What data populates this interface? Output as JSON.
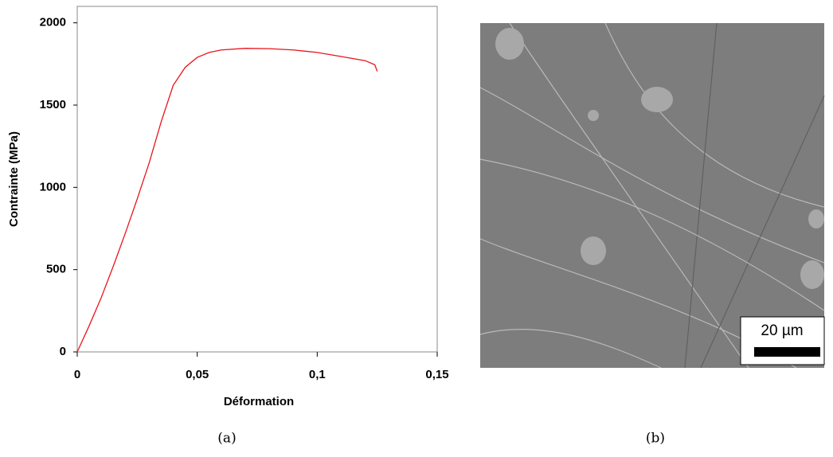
{
  "chart_data": {
    "type": "line",
    "x_label": "Déformation",
    "y_label": "Contrainte (MPa)",
    "x": [
      0,
      0.005,
      0.01,
      0.015,
      0.02,
      0.025,
      0.03,
      0.035,
      0.04,
      0.045,
      0.05,
      0.055,
      0.06,
      0.07,
      0.08,
      0.09,
      0.1,
      0.11,
      0.12,
      0.124,
      0.125
    ],
    "values": [
      0,
      160,
      330,
      520,
      720,
      930,
      1150,
      1400,
      1620,
      1730,
      1790,
      1820,
      1835,
      1845,
      1843,
      1835,
      1820,
      1795,
      1770,
      1745,
      1705
    ],
    "color": "#e8141c",
    "xlim": [
      0,
      0.15
    ],
    "ylim": [
      0,
      2100
    ],
    "xticks": [
      0,
      {
        "value": 0.05,
        "label": "0,05"
      },
      {
        "value": 0.1,
        "label": "0,1"
      },
      {
        "value": 0.15,
        "label": "0,15"
      }
    ],
    "yticks": [
      0,
      500,
      1000,
      1500,
      2000
    ]
  },
  "image": {
    "scale_bar": "20 µm"
  },
  "captions": [
    "(a)",
    "(b)"
  ]
}
